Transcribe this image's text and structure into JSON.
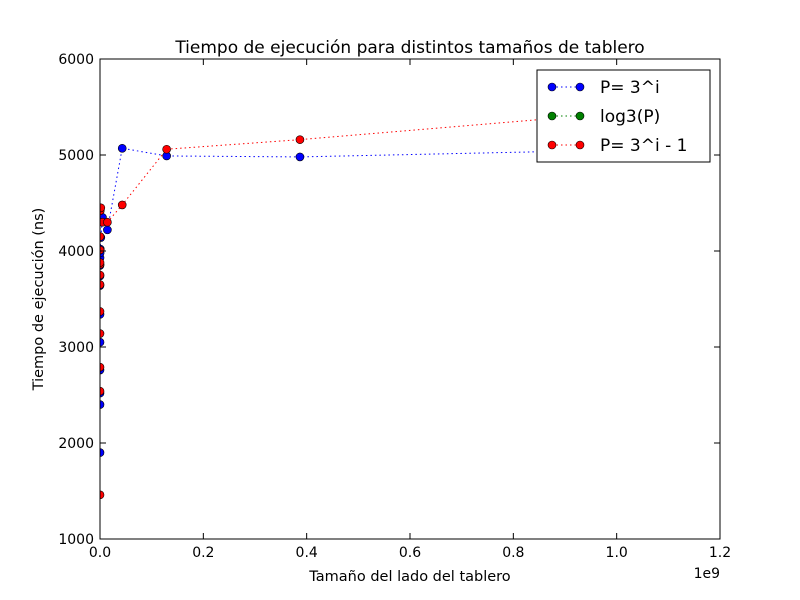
{
  "chart_data": {
    "type": "line",
    "title": "Tiempo de ejecución para distintos tamaños de tablero",
    "xlabel": "Tamaño del lado del tablero",
    "ylabel": "Tiempo de ejecución (ns)",
    "x_offset_label": "1e9",
    "xlim": [
      0,
      1.2
    ],
    "ylim": [
      1000,
      6000
    ],
    "xticks": [
      0.0,
      0.2,
      0.4,
      0.6,
      0.8,
      1.0,
      1.2
    ],
    "xtick_labels": [
      "0.0",
      "0.2",
      "0.4",
      "0.6",
      "0.8",
      "1.0",
      "1.2"
    ],
    "yticks": [
      1000,
      2000,
      3000,
      4000,
      5000,
      6000
    ],
    "ytick_labels": [
      "1000",
      "2000",
      "3000",
      "4000",
      "5000",
      "6000"
    ],
    "grid": false,
    "legend_position": "top-right",
    "series": [
      {
        "name": "P= 3^i",
        "color": "#0000ff",
        "x": [
          3e-09,
          9e-09,
          2.7e-08,
          8.1e-08,
          2.4e-07,
          7.3e-07,
          2.2e-06,
          6.6e-06,
          2e-05,
          5.9e-05,
          0.00018,
          0.00053,
          0.0016,
          0.0048,
          0.0143,
          0.043,
          0.129,
          0.387,
          1.162
        ],
        "y": [
          1900,
          2400,
          2520,
          2760,
          3050,
          3340,
          3640,
          3740,
          3850,
          3930,
          3980,
          4020,
          4140,
          4350,
          4220,
          5070,
          4990,
          4980,
          5070
        ]
      },
      {
        "name": "log3(P)",
        "color": "#008000",
        "x": [],
        "y": []
      },
      {
        "name": "P= 3^i - 1",
        "color": "#ff0000",
        "x": [
          2e-09,
          8e-09,
          2.6e-08,
          8e-08,
          2.4e-07,
          7.3e-07,
          2.2e-06,
          6.6e-06,
          2e-05,
          5.9e-05,
          0.00018,
          0.00053,
          0.0016,
          0.0048,
          0.0143,
          0.043,
          0.129,
          0.387,
          1.162
        ],
        "y": [
          1460,
          2540,
          2790,
          3140,
          3370,
          3650,
          3750,
          3860,
          3880,
          4010,
          4150,
          4420,
          4450,
          4300,
          4300,
          4480,
          5060,
          5160,
          5510
        ]
      }
    ]
  }
}
